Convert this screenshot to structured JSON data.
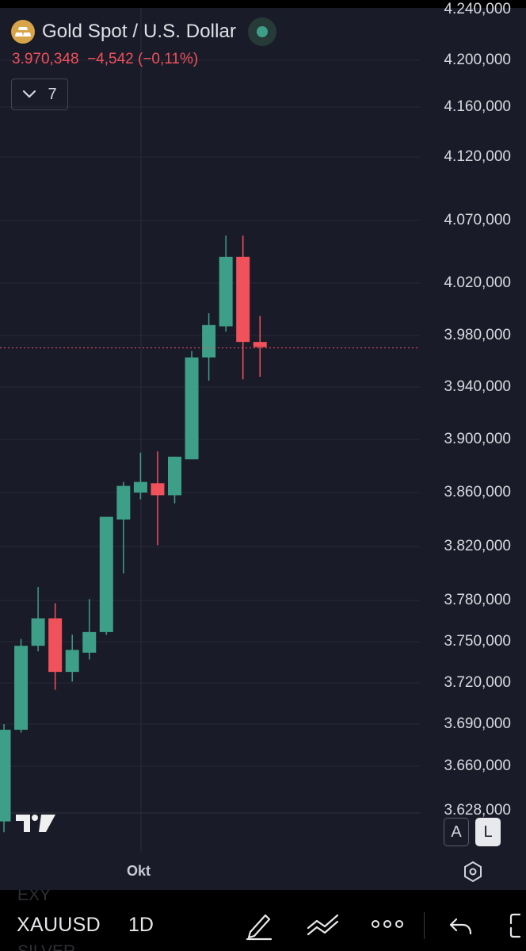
{
  "header": {
    "title": "Gold Spot / U.S. Dollar",
    "price_line": "3.970,348  −4,542 (−0,11%)",
    "indicators_count": "7"
  },
  "price_axis": [
    "4.240,000",
    "4.200,000",
    "4.160,000",
    "4.120,000",
    "4.070,000",
    "4.020,000",
    "3.980,000",
    "3.940,000",
    "3.900,000",
    "3.860,000",
    "3.820,000",
    "3.780,000",
    "3.750,000",
    "3.720,000",
    "3.690,000",
    "3.660,000",
    "3.628,000"
  ],
  "time_axis": {
    "label": "Okt"
  },
  "scale_buttons": {
    "auto": "A",
    "log": "L"
  },
  "toolbar": {
    "symbol": "XAUUSD",
    "interval": "1D",
    "ghost_above": "EXY",
    "ghost_below": "SILVER"
  },
  "colors": {
    "up": "#3e9f88",
    "down": "#f0515b",
    "background": "#1a1b28",
    "gold_icon": "#d8a44a"
  },
  "icons": [
    "gold-bars-icon",
    "live-dot-icon",
    "chevron-down-icon",
    "tradingview-logo",
    "settings-hexagon-icon",
    "pen-draw-icon",
    "trend-line-icon",
    "more-dots-icon",
    "undo-icon",
    "fullscreen-icon"
  ],
  "chart_data": {
    "type": "candlestick",
    "series": [
      {
        "values": [
          {
            "open": 3620,
            "high": 3690,
            "low": 3612,
            "close": 3686
          },
          {
            "open": 3686,
            "high": 3752,
            "low": 3684,
            "close": 3747
          },
          {
            "open": 3747,
            "high": 3790,
            "low": 3743,
            "close": 3767
          },
          {
            "open": 3767,
            "high": 3778,
            "low": 3715,
            "close": 3728
          },
          {
            "open": 3728,
            "high": 3755,
            "low": 3721,
            "close": 3744
          },
          {
            "open": 3742,
            "high": 3781,
            "low": 3737,
            "close": 3757
          },
          {
            "open": 3757,
            "high": 3842,
            "low": 3755,
            "close": 3842
          },
          {
            "open": 3840,
            "high": 3868,
            "low": 3800,
            "close": 3865
          },
          {
            "open": 3860,
            "high": 3890,
            "low": 3855,
            "close": 3868
          },
          {
            "open": 3867,
            "high": 3891,
            "low": 3821,
            "close": 3858
          },
          {
            "open": 3858,
            "high": 3887,
            "low": 3852,
            "close": 3887
          },
          {
            "open": 3885,
            "high": 3968,
            "low": 3885,
            "close": 3963
          },
          {
            "open": 3963,
            "high": 3997,
            "low": 3945,
            "close": 3988
          },
          {
            "open": 3987,
            "high": 4058,
            "low": 3983,
            "close": 4041
          },
          {
            "open": 4041,
            "high": 4058,
            "low": 3946,
            "close": 3975
          },
          {
            "open": 3975,
            "high": 3995,
            "low": 3948,
            "close": 3971
          }
        ]
      }
    ],
    "last_price": 3970.348
  }
}
